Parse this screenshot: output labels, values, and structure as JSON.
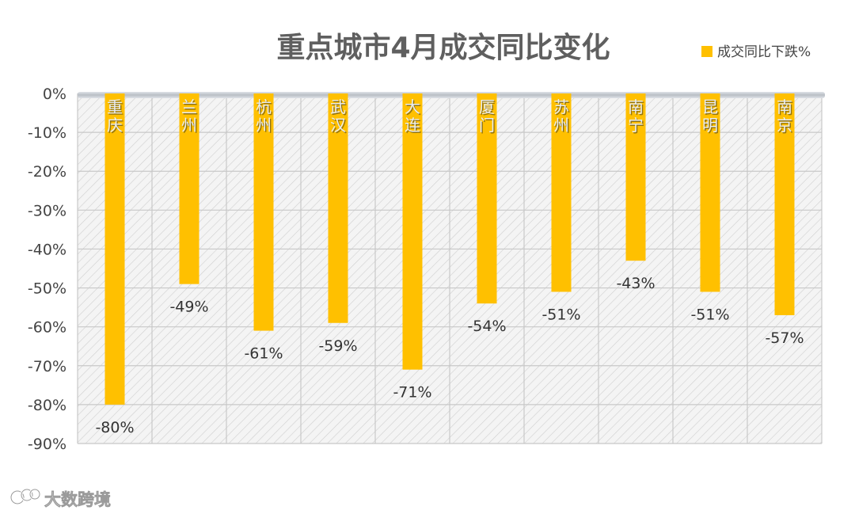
{
  "chart_data": {
    "type": "bar",
    "title": "重点城市4月成交同比变化",
    "categories": [
      "重庆",
      "兰州",
      "杭州",
      "武汉",
      "大连",
      "厦门",
      "苏州",
      "南宁",
      "昆明",
      "南京"
    ],
    "series": [
      {
        "name": "成交同比下跌%",
        "values": [
          -80,
          -49,
          -61,
          -59,
          -71,
          -54,
          -51,
          -43,
          -51,
          -57
        ],
        "value_labels": [
          "-80%",
          "-49%",
          "-61%",
          "-59%",
          "-71%",
          "-54%",
          "-51%",
          "-43%",
          "-51%",
          "-57%"
        ],
        "color": "#ffc000"
      }
    ],
    "y_ticks": [
      0,
      -10,
      -20,
      -30,
      -40,
      -50,
      -60,
      -70,
      -80,
      -90
    ],
    "y_tick_labels": [
      "0%",
      "-10%",
      "-20%",
      "-30%",
      "-40%",
      "-50%",
      "-60%",
      "-70%",
      "-80%",
      "-90%"
    ],
    "ylim": [
      -90,
      0
    ],
    "grid": true,
    "legend_position": "top-right",
    "colors": {
      "bar": "#ffc000",
      "plot_background": "#f3f3f3",
      "hatch": "#cccccc",
      "grid": "#c8c8c8",
      "axis_band": "#c4c8cc",
      "category_text": "#e8ecf2"
    }
  },
  "watermark": {
    "text": "大数跨境"
  }
}
